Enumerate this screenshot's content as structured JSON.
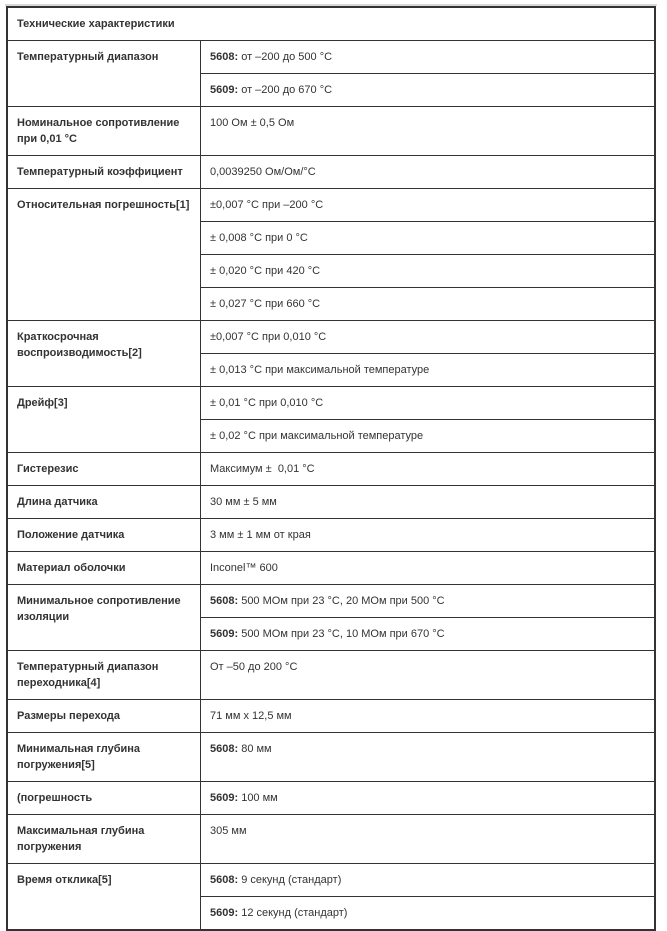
{
  "title": "Технические характеристики",
  "rows": [
    {
      "label": "Температурный диапазон",
      "values": [
        {
          "prefix": "5608:",
          "text": " от –200 до 500 °C"
        },
        {
          "prefix": "5609:",
          "text": " от –200 до 670 °C"
        }
      ]
    },
    {
      "label": "Номинальное сопротивление при 0,01 °C",
      "values": [
        {
          "prefix": "",
          "text": "100 Ом ± 0,5 Ом"
        }
      ]
    },
    {
      "label": "Температурный коэффициент",
      "values": [
        {
          "prefix": "",
          "text": "0,0039250 Ом/Ом/°C"
        }
      ]
    },
    {
      "label": "Относительная погрешность[1]",
      "values": [
        {
          "prefix": "",
          "text": "±0,007 °C при –200 °C"
        },
        {
          "prefix": "",
          "text": "± 0,008 °C при 0 °C"
        },
        {
          "prefix": "",
          "text": "± 0,020 °C при 420 °C"
        },
        {
          "prefix": "",
          "text": "± 0,027 °C при 660 °C"
        }
      ]
    },
    {
      "label": "Краткосрочная воспроизводимость[2]",
      "values": [
        {
          "prefix": "",
          "text": "±0,007 °C при 0,010 °C"
        },
        {
          "prefix": "",
          "text": "± 0,013 °C при максимальной температуре"
        }
      ]
    },
    {
      "label": "Дрейф[3]",
      "values": [
        {
          "prefix": "",
          "text": "± 0,01 °C при 0,010 °C"
        },
        {
          "prefix": "",
          "text": "± 0,02 °C при максимальной температуре"
        }
      ]
    },
    {
      "label": "Гистерезис",
      "values": [
        {
          "prefix": "",
          "text": "Максимум ±  0,01 °C"
        }
      ]
    },
    {
      "label": "Длина датчика",
      "values": [
        {
          "prefix": "",
          "text": "30 мм ± 5 мм"
        }
      ]
    },
    {
      "label": "Положение датчика",
      "values": [
        {
          "prefix": "",
          "text": "3 мм ± 1 мм от края"
        }
      ]
    },
    {
      "label": "Материал оболочки",
      "values": [
        {
          "prefix": "",
          "text": "Inconel™ 600"
        }
      ]
    },
    {
      "label": "Минимальное сопротивление изоляции",
      "values": [
        {
          "prefix": "5608:",
          "text": " 500 МОм при 23 °C, 20 МОм при 500 °C"
        },
        {
          "prefix": "5609:",
          "text": " 500 МОм при 23 °C, 10 МОм при 670 °C"
        }
      ]
    },
    {
      "label": "Температурный диапазон переходника[4]",
      "values": [
        {
          "prefix": "",
          "text": "От –50 до 200 °C"
        }
      ]
    },
    {
      "label": "Размеры перехода",
      "values": [
        {
          "prefix": "",
          "text": "71 мм x 12,5 мм"
        }
      ]
    },
    {
      "label": "Минимальная глубина погружения[5]",
      "values": [
        {
          "prefix": "5608:",
          "text": " 80 мм"
        }
      ]
    },
    {
      "label": "(погрешность",
      "values": [
        {
          "prefix": "5609:",
          "text": " 100 мм"
        }
      ]
    },
    {
      "label": "Максимальная глубина погружения",
      "values": [
        {
          "prefix": "",
          "text": "305 мм"
        }
      ]
    },
    {
      "label": "Время отклика[5]",
      "values": [
        {
          "prefix": "5608:",
          "text": " 9 секунд (стандарт)"
        },
        {
          "prefix": "5609:",
          "text": " 12 секунд (стандарт)"
        }
      ]
    }
  ]
}
